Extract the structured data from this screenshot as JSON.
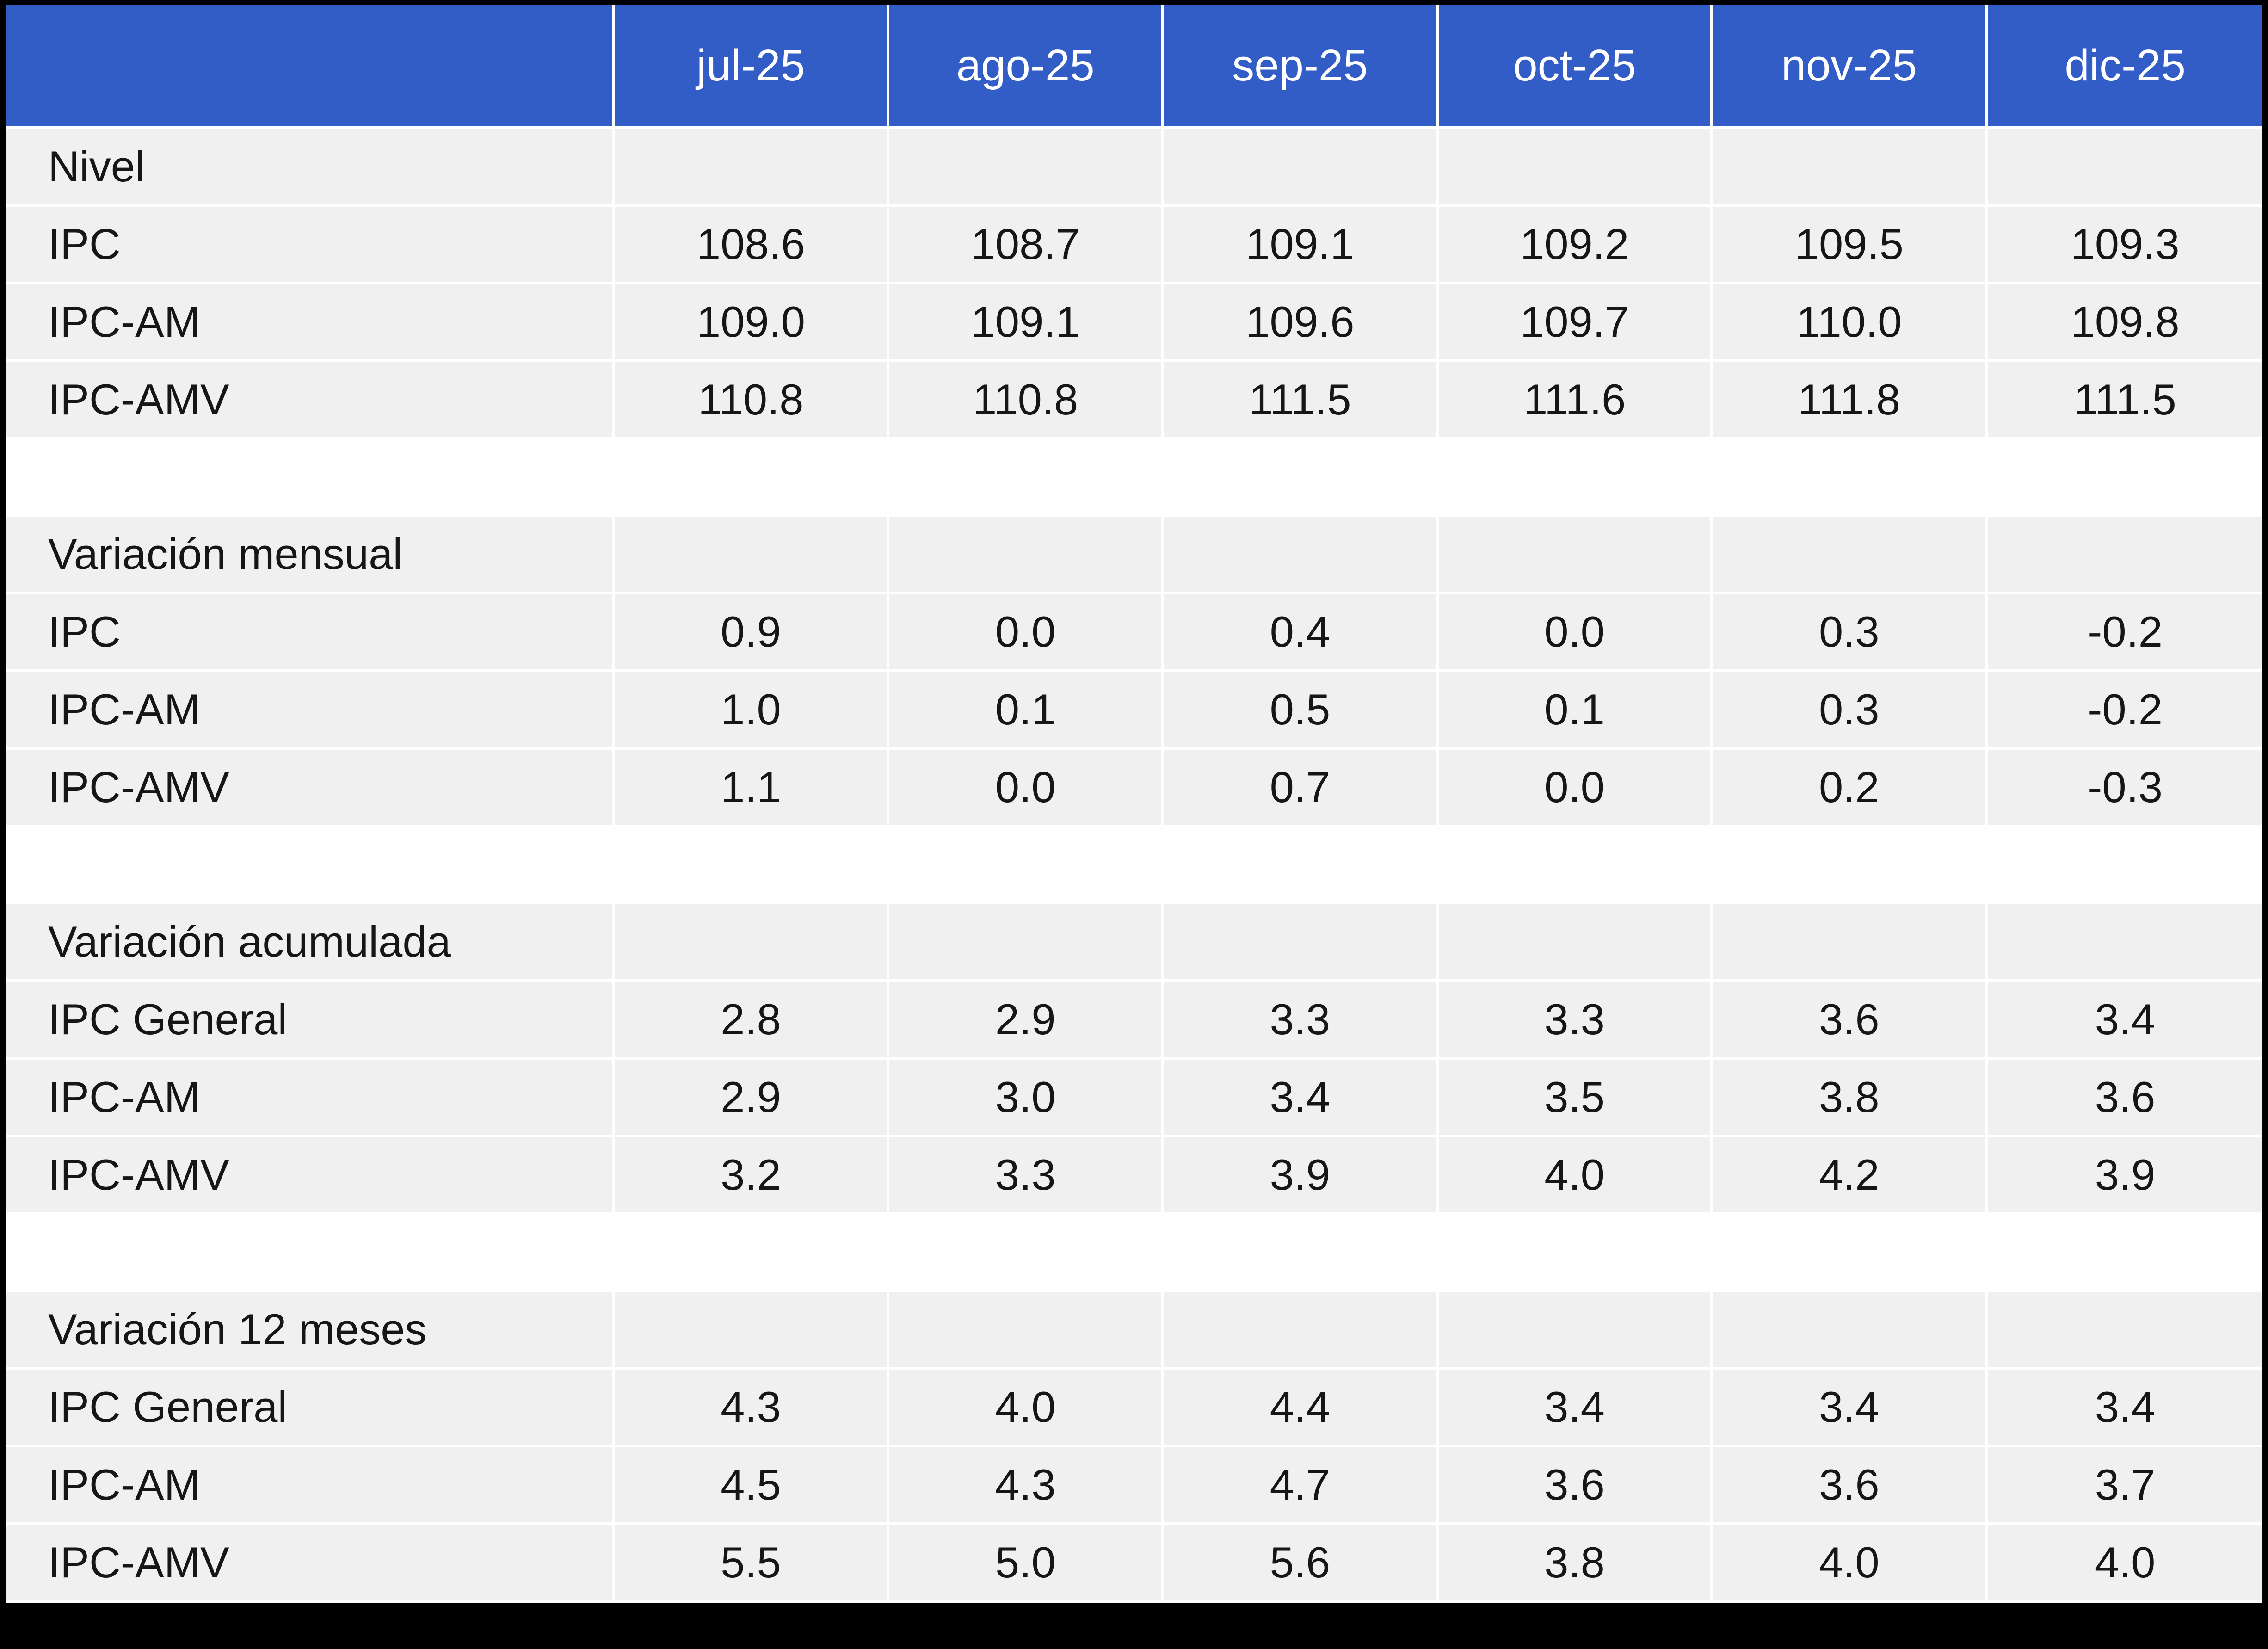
{
  "table": {
    "corner_label": "",
    "columns": [
      "jul-25",
      "ago-25",
      "sep-25",
      "oct-25",
      "nov-25",
      "dic-25"
    ],
    "sections": [
      {
        "title": "Nivel",
        "rows": [
          {
            "label": "IPC",
            "values": [
              "108.6",
              "108.7",
              "109.1",
              "109.2",
              "109.5",
              "109.3"
            ]
          },
          {
            "label": "IPC-AM",
            "values": [
              "109.0",
              "109.1",
              "109.6",
              "109.7",
              "110.0",
              "109.8"
            ]
          },
          {
            "label": "IPC-AMV",
            "values": [
              "110.8",
              "110.8",
              "111.5",
              "111.6",
              "111.8",
              "111.5"
            ]
          }
        ]
      },
      {
        "title": "Variación mensual",
        "rows": [
          {
            "label": "IPC",
            "values": [
              "0.9",
              "0.0",
              "0.4",
              "0.0",
              "0.3",
              "-0.2"
            ]
          },
          {
            "label": "IPC-AM",
            "values": [
              "1.0",
              "0.1",
              "0.5",
              "0.1",
              "0.3",
              "-0.2"
            ]
          },
          {
            "label": "IPC-AMV",
            "values": [
              "1.1",
              "0.0",
              "0.7",
              "0.0",
              "0.2",
              "-0.3"
            ]
          }
        ]
      },
      {
        "title": "Variación acumulada",
        "rows": [
          {
            "label": "IPC General",
            "values": [
              "2.8",
              "2.9",
              "3.3",
              "3.3",
              "3.6",
              "3.4"
            ]
          },
          {
            "label": "IPC-AM",
            "values": [
              "2.9",
              "3.0",
              "3.4",
              "3.5",
              "3.8",
              "3.6"
            ]
          },
          {
            "label": "IPC-AMV",
            "values": [
              "3.2",
              "3.3",
              "3.9",
              "4.0",
              "4.2",
              "3.9"
            ]
          }
        ]
      },
      {
        "title": "Variación 12 meses",
        "rows": [
          {
            "label": "IPC General",
            "values": [
              "4.3",
              "4.0",
              "4.4",
              "3.4",
              "3.4",
              "3.4"
            ]
          },
          {
            "label": "IPC-AM",
            "values": [
              "4.5",
              "4.3",
              "4.7",
              "3.6",
              "3.6",
              "3.7"
            ]
          },
          {
            "label": "IPC-AMV",
            "values": [
              "5.5",
              "5.0",
              "5.6",
              "3.8",
              "4.0",
              "4.0"
            ]
          }
        ]
      }
    ],
    "colors": {
      "header_bg": "#325CC6",
      "header_text": "#FFFFFF",
      "cell_bg": "#F0F0F0",
      "gap_bg": "#FFFFFF",
      "frame_border": "#000000",
      "body_text": "#161616"
    }
  },
  "chart_data": {
    "type": "table",
    "title": "",
    "columns": [
      "",
      "jul-25",
      "ago-25",
      "sep-25",
      "oct-25",
      "nov-25",
      "dic-25"
    ],
    "sections": [
      {
        "title": "Nivel",
        "rows": [
          {
            "label": "IPC",
            "values": [
              108.6,
              108.7,
              109.1,
              109.2,
              109.5,
              109.3
            ]
          },
          {
            "label": "IPC-AM",
            "values": [
              109.0,
              109.1,
              109.6,
              109.7,
              110.0,
              109.8
            ]
          },
          {
            "label": "IPC-AMV",
            "values": [
              110.8,
              110.8,
              111.5,
              111.6,
              111.8,
              111.5
            ]
          }
        ]
      },
      {
        "title": "Variación mensual",
        "rows": [
          {
            "label": "IPC",
            "values": [
              0.9,
              0.0,
              0.4,
              0.0,
              0.3,
              -0.2
            ]
          },
          {
            "label": "IPC-AM",
            "values": [
              1.0,
              0.1,
              0.5,
              0.1,
              0.3,
              -0.2
            ]
          },
          {
            "label": "IPC-AMV",
            "values": [
              1.1,
              0.0,
              0.7,
              0.0,
              0.2,
              -0.3
            ]
          }
        ]
      },
      {
        "title": "Variación acumulada",
        "rows": [
          {
            "label": "IPC General",
            "values": [
              2.8,
              2.9,
              3.3,
              3.3,
              3.6,
              3.4
            ]
          },
          {
            "label": "IPC-AM",
            "values": [
              2.9,
              3.0,
              3.4,
              3.5,
              3.8,
              3.6
            ]
          },
          {
            "label": "IPC-AMV",
            "values": [
              3.2,
              3.3,
              3.9,
              4.0,
              4.2,
              3.9
            ]
          }
        ]
      },
      {
        "title": "Variación 12 meses",
        "rows": [
          {
            "label": "IPC General",
            "values": [
              4.3,
              4.0,
              4.4,
              3.4,
              3.4,
              3.4
            ]
          },
          {
            "label": "IPC-AM",
            "values": [
              4.5,
              4.3,
              4.7,
              3.6,
              3.6,
              3.7
            ]
          },
          {
            "label": "IPC-AMV",
            "values": [
              5.5,
              5.0,
              5.6,
              3.8,
              4.0,
              4.0
            ]
          }
        ]
      }
    ]
  }
}
